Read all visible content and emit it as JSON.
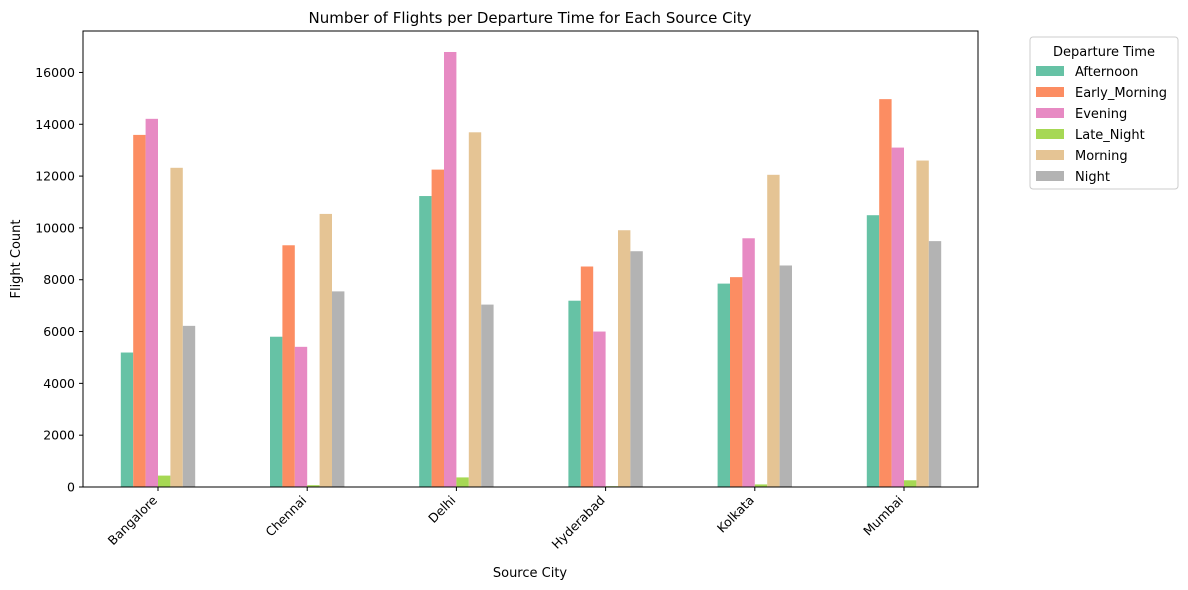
{
  "chart_data": {
    "type": "bar",
    "title": "Number of Flights per Departure Time for Each Source City",
    "xlabel": "Source City",
    "ylabel": "Flight Count",
    "categories": [
      "Bangalore",
      "Chennai",
      "Delhi",
      "Hyderabad",
      "Kolkata",
      "Mumbai"
    ],
    "series": [
      {
        "name": "Afternoon",
        "color": "#66c2a5",
        "values": [
          5190,
          5800,
          11230,
          7190,
          7850,
          10490
        ]
      },
      {
        "name": "Early_Morning",
        "color": "#fc8d62",
        "values": [
          13590,
          9330,
          12250,
          8510,
          8100,
          14970
        ]
      },
      {
        "name": "Evening",
        "color": "#e78ac3",
        "values": [
          14210,
          5410,
          16790,
          6000,
          9600,
          13100
        ]
      },
      {
        "name": "Late_Night",
        "color": "#a6d854",
        "values": [
          440,
          70,
          370,
          30,
          100,
          260
        ]
      },
      {
        "name": "Morning",
        "color": "#e5c494",
        "values": [
          12320,
          10540,
          13690,
          9910,
          12050,
          12600
        ]
      },
      {
        "name": "Night",
        "color": "#b3b3b3",
        "values": [
          6220,
          7550,
          7040,
          9100,
          8550,
          9490
        ]
      }
    ],
    "yticks": [
      0,
      2000,
      4000,
      6000,
      8000,
      10000,
      12000,
      14000,
      16000
    ],
    "ylim": [
      0,
      17600
    ],
    "legend_title": "Departure Time",
    "legend_position": "outside-top-right",
    "grid": false
  }
}
